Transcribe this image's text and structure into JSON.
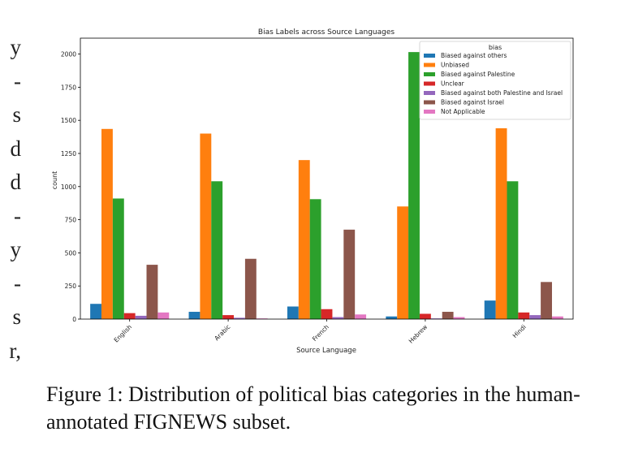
{
  "left_margin_fragments": [
    "y",
    "-",
    "s",
    "d",
    "d",
    "-",
    "y",
    "-",
    "s",
    "r,"
  ],
  "chart_data": {
    "type": "bar",
    "title": "Bias Labels across Source Languages",
    "xlabel": "Source Language",
    "ylabel": "count",
    "ylim": [
      0,
      2120
    ],
    "yticks": [
      0,
      250,
      500,
      750,
      1000,
      1250,
      1500,
      1750,
      2000
    ],
    "categories": [
      "English",
      "Arabic",
      "French",
      "Hebrew",
      "Hindi"
    ],
    "legend_title": "bias",
    "legend_position": "top-right",
    "grid": false,
    "series": [
      {
        "name": "Biased against others",
        "color": "#1f77b4",
        "values": [
          115,
          55,
          95,
          20,
          140
        ]
      },
      {
        "name": "Unbiased",
        "color": "#ff7f0e",
        "values": [
          1435,
          1400,
          1200,
          850,
          1440
        ]
      },
      {
        "name": "Biased against Palestine",
        "color": "#2ca02c",
        "values": [
          910,
          1040,
          905,
          2015,
          1040
        ]
      },
      {
        "name": "Unclear",
        "color": "#d62728",
        "values": [
          45,
          30,
          75,
          40,
          50
        ]
      },
      {
        "name": "Biased against both Palestine and Israel",
        "color": "#9467bd",
        "values": [
          25,
          10,
          15,
          5,
          30
        ]
      },
      {
        "name": "Biased against Israel",
        "color": "#8c564b",
        "values": [
          410,
          455,
          675,
          55,
          280
        ]
      },
      {
        "name": "Not Applicable",
        "color": "#e377c2",
        "values": [
          50,
          5,
          35,
          15,
          20
        ]
      }
    ]
  },
  "caption": "Figure 1: Distribution of political bias categories in the human-annotated FIGNEWS subset."
}
